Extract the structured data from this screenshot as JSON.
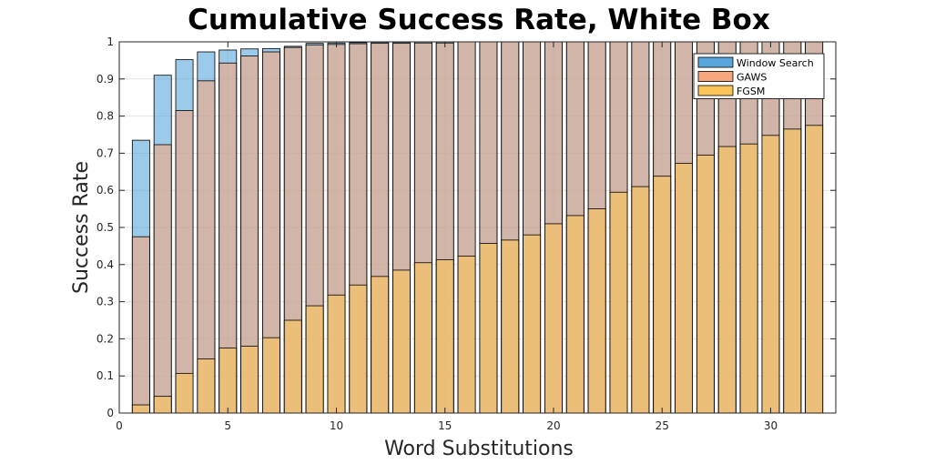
{
  "chart_data": {
    "type": "bar",
    "title": "Cumulative Success Rate, White Box",
    "xlabel": "Word Substitutions",
    "ylabel": "Success Rate",
    "xlim": [
      0,
      33
    ],
    "ylim": [
      0,
      1
    ],
    "xticks": [
      0,
      5,
      10,
      15,
      20,
      25,
      30
    ],
    "yticks": [
      0,
      0.1,
      0.2,
      0.3,
      0.4,
      0.5,
      0.6,
      0.7,
      0.8,
      0.9,
      1
    ],
    "grid": true,
    "legend_position": "top-right",
    "x": [
      1,
      2,
      3,
      4,
      5,
      6,
      7,
      8,
      9,
      10,
      11,
      12,
      13,
      14,
      15,
      16,
      17,
      18,
      19,
      20,
      21,
      22,
      23,
      24,
      25,
      26,
      27,
      28,
      29,
      30,
      31,
      32
    ],
    "series": [
      {
        "name": "Window Search",
        "color": "#5aa6dc",
        "values": [
          0.735,
          0.91,
          0.952,
          0.973,
          0.978,
          0.981,
          0.982,
          0.988,
          0.996,
          0.997,
          0.998,
          0.999,
          0.999,
          1,
          1,
          1,
          1,
          1,
          1,
          1,
          1,
          1,
          1,
          1,
          1,
          1,
          1,
          1,
          1,
          1,
          1,
          1
        ]
      },
      {
        "name": "GAWS",
        "color": "#f5a67c",
        "values": [
          0.475,
          0.723,
          0.815,
          0.895,
          0.943,
          0.962,
          0.973,
          0.985,
          0.992,
          0.993,
          0.995,
          0.996,
          0.996,
          0.997,
          0.997,
          1,
          1,
          1,
          1,
          1,
          1,
          1,
          1,
          1,
          1,
          1,
          1,
          1,
          1,
          1,
          1,
          1
        ]
      },
      {
        "name": "FGSM",
        "color": "#fbc55a",
        "values": [
          0.022,
          0.045,
          0.107,
          0.146,
          0.175,
          0.18,
          0.203,
          0.25,
          0.289,
          0.318,
          0.345,
          0.368,
          0.385,
          0.405,
          0.413,
          0.423,
          0.457,
          0.466,
          0.48,
          0.51,
          0.532,
          0.55,
          0.595,
          0.61,
          0.638,
          0.673,
          0.695,
          0.718,
          0.725,
          0.748,
          0.765,
          0.775
        ]
      }
    ]
  }
}
